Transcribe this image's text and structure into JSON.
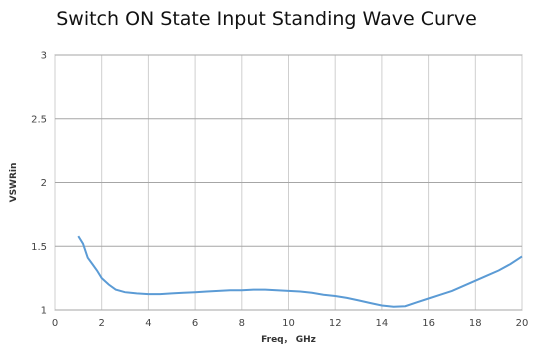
{
  "chart_data": {
    "type": "line",
    "title": "Switch ON State Input Standing Wave Curve",
    "xlabel": "Freq， GHz",
    "ylabel": "VSWRin",
    "xlim": [
      0,
      20
    ],
    "ylim": [
      1,
      3
    ],
    "xticks": [
      0,
      2,
      4,
      6,
      8,
      10,
      12,
      14,
      16,
      18,
      20
    ],
    "yticks": [
      1,
      1.5,
      2,
      2.5,
      3
    ],
    "ytick_labels": [
      "1",
      "1.5",
      "2",
      "2.5",
      "3"
    ],
    "grid": true,
    "line_color": "#5b9bd5",
    "series": [
      {
        "x": [
          1.0,
          1.2,
          1.4,
          1.6,
          1.8,
          2.0,
          2.3,
          2.6,
          3.0,
          3.5,
          4.0,
          4.5,
          5.0,
          5.5,
          6.0,
          6.5,
          7.0,
          7.5,
          8.0,
          8.5,
          9.0,
          9.5,
          10.0,
          10.5,
          11.0,
          11.5,
          12.0,
          12.5,
          13.0,
          13.5,
          14.0,
          14.5,
          15.0,
          15.5,
          16.0,
          16.5,
          17.0,
          17.5,
          18.0,
          18.5,
          19.0,
          19.5,
          20.0
        ],
        "y": [
          1.58,
          1.52,
          1.41,
          1.36,
          1.31,
          1.25,
          1.2,
          1.16,
          1.14,
          1.13,
          1.125,
          1.125,
          1.13,
          1.135,
          1.14,
          1.145,
          1.15,
          1.155,
          1.155,
          1.16,
          1.16,
          1.155,
          1.15,
          1.145,
          1.135,
          1.12,
          1.11,
          1.095,
          1.075,
          1.055,
          1.035,
          1.025,
          1.03,
          1.06,
          1.09,
          1.12,
          1.15,
          1.19,
          1.23,
          1.27,
          1.31,
          1.36,
          1.42
        ]
      }
    ]
  }
}
